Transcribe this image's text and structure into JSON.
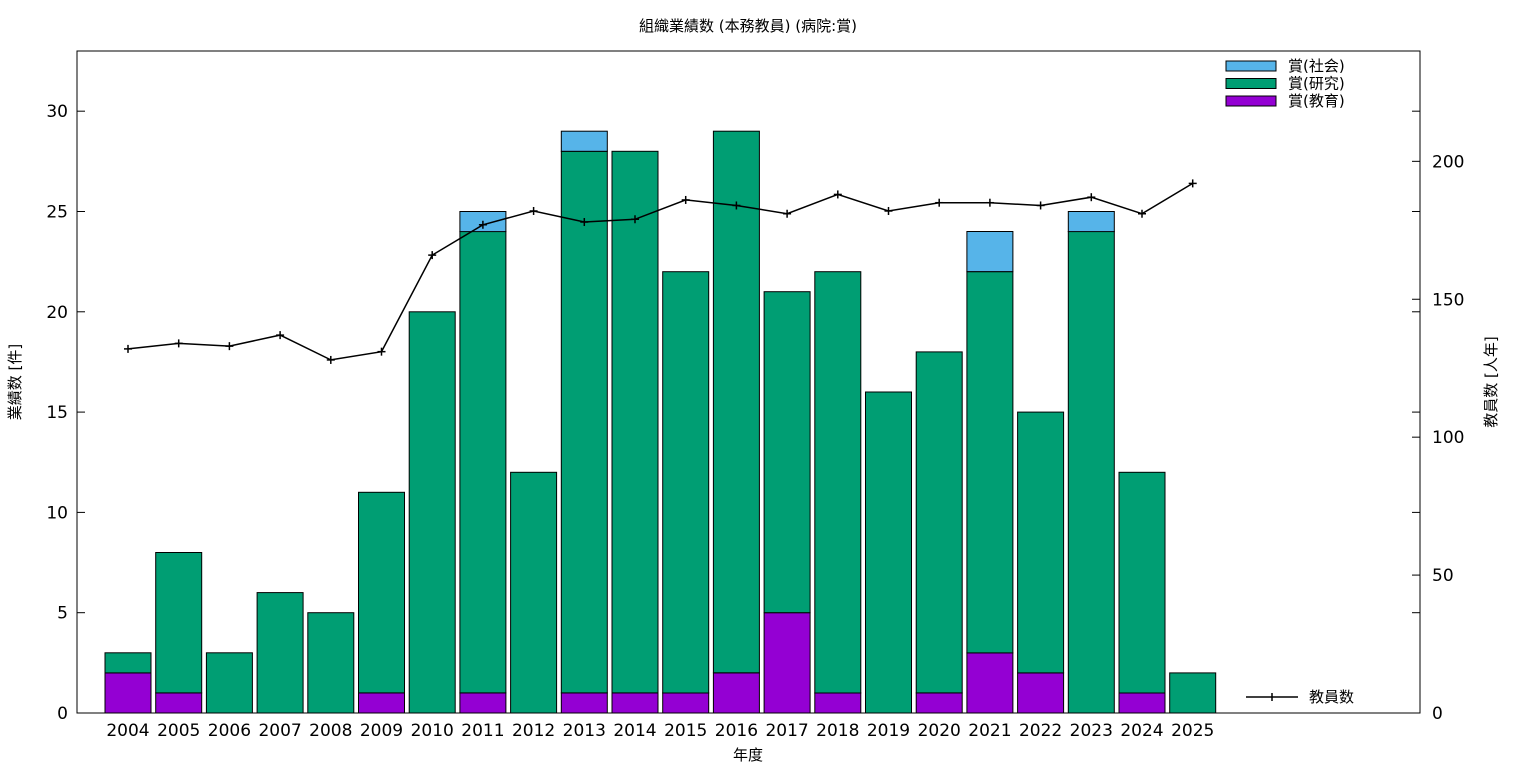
{
  "chart_data": {
    "type": "bar",
    "stacked": true,
    "title": "組織業績数 (本務教員) (病院:賞)",
    "xlabel": "年度",
    "ylabel": "業績数 [件]",
    "y2label": "教員数 [人年]",
    "ylim": [
      0,
      33
    ],
    "y2lim": [
      0,
      240
    ],
    "yticks": [
      0,
      5,
      10,
      15,
      20,
      25,
      30
    ],
    "y2ticks": [
      0,
      50,
      100,
      150,
      200
    ],
    "categories": [
      "2004",
      "2005",
      "2006",
      "2007",
      "2008",
      "2009",
      "2010",
      "2011",
      "2012",
      "2013",
      "2014",
      "2015",
      "2016",
      "2017",
      "2018",
      "2019",
      "2020",
      "2021",
      "2022",
      "2023",
      "2024",
      "2025"
    ],
    "series": [
      {
        "name": "賞(教育)",
        "color": "#9400d3",
        "values": [
          2,
          1,
          0,
          0,
          0,
          1,
          0,
          1,
          0,
          1,
          1,
          1,
          2,
          5,
          1,
          0,
          1,
          3,
          2,
          0,
          1,
          0
        ]
      },
      {
        "name": "賞(研究)",
        "color": "#009e73",
        "values": [
          1,
          7,
          3,
          6,
          5,
          10,
          20,
          23,
          12,
          27,
          27,
          21,
          27,
          16,
          21,
          16,
          17,
          19,
          13,
          24,
          11,
          2
        ]
      },
      {
        "name": "賞(社会)",
        "color": "#56b4e9",
        "values": [
          0,
          0,
          0,
          0,
          0,
          0,
          0,
          1,
          0,
          1,
          0,
          0,
          0,
          0,
          0,
          0,
          0,
          2,
          0,
          1,
          0,
          0
        ]
      }
    ],
    "line_series": {
      "name": "教員数",
      "color": "#000000",
      "axis": "right",
      "values": [
        132,
        134,
        133,
        137,
        128,
        131,
        166,
        177,
        182,
        178,
        179,
        186,
        184,
        181,
        188,
        182,
        185,
        185,
        184,
        187,
        181,
        192
      ]
    },
    "legend_position": "top-right",
    "grid": false
  }
}
